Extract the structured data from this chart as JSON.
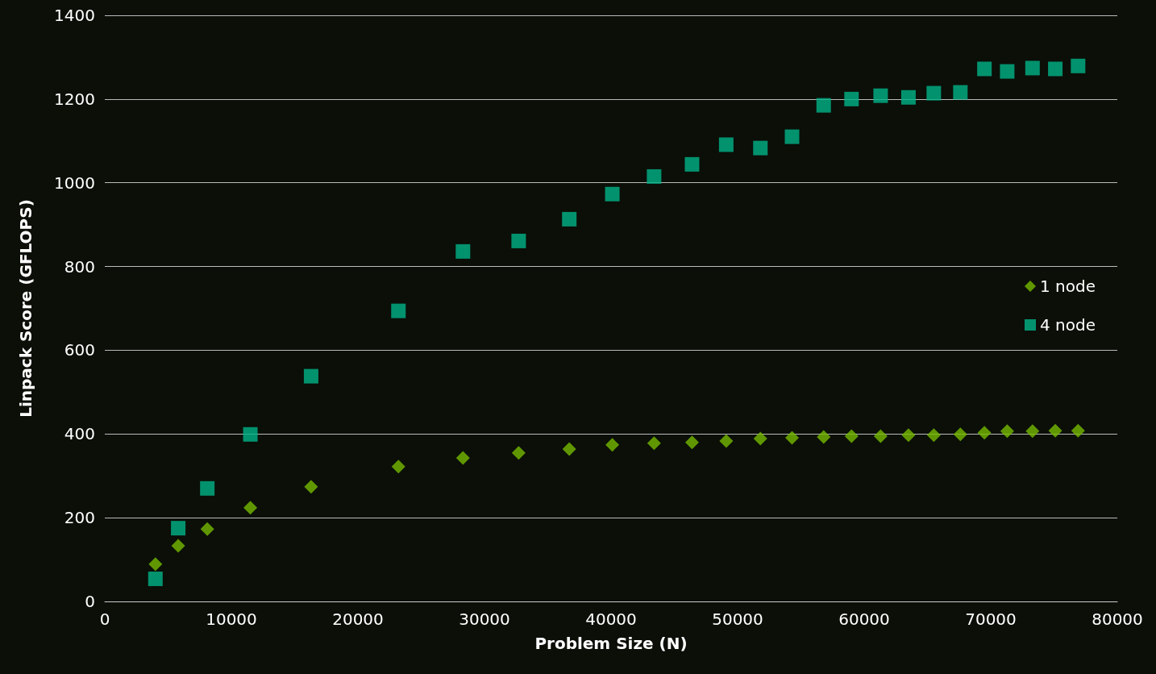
{
  "chart_data": {
    "type": "scatter",
    "xlabel": "Problem Size (N)",
    "ylabel": "Linpack Score (GFLOPS)",
    "x": [
      4000,
      5800,
      8100,
      11500,
      16300,
      23200,
      28300,
      32700,
      36700,
      40100,
      43400,
      46400,
      49100,
      51800,
      54300,
      56800,
      59000,
      61300,
      63500,
      65500,
      67600,
      69500,
      71300,
      73300,
      75100,
      76900
    ],
    "series": [
      {
        "name": "1 node",
        "color": "#76b900",
        "marker": "diamond",
        "values": [
          89,
          133,
          173,
          224,
          274,
          322,
          343,
          355,
          364,
          374,
          378,
          380,
          383,
          389,
          391,
          393,
          395,
          395,
          397,
          397,
          399,
          403,
          407,
          407,
          408,
          408
        ]
      },
      {
        "name": "4 node",
        "color": "#00b388",
        "marker": "square",
        "values": [
          54,
          175,
          270,
          399,
          538,
          694,
          836,
          861,
          913,
          973,
          1015,
          1044,
          1091,
          1083,
          1110,
          1185,
          1200,
          1208,
          1204,
          1214,
          1216,
          1272,
          1266,
          1274,
          1272,
          1279
        ]
      }
    ],
    "xlim": [
      0,
      80000
    ],
    "xticks": [
      0,
      10000,
      20000,
      30000,
      40000,
      50000,
      60000,
      70000,
      80000
    ],
    "ylim": [
      0,
      1400
    ],
    "yticks": [
      0,
      200,
      400,
      600,
      800,
      1000,
      1200,
      1400
    ],
    "grid": "y",
    "legend": "right"
  }
}
